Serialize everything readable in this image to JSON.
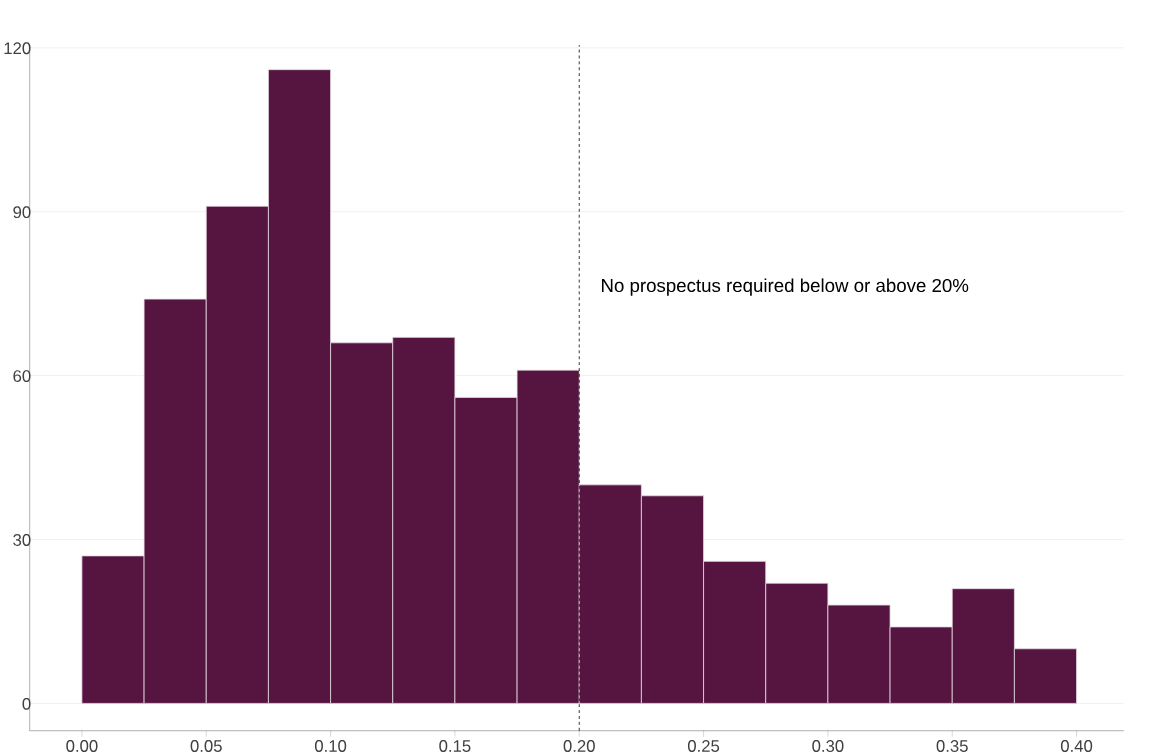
{
  "chart_data": {
    "type": "histogram",
    "bins": [
      0.0,
      0.025,
      0.05,
      0.075,
      0.1,
      0.125,
      0.15,
      0.175,
      0.2,
      0.225,
      0.25,
      0.275,
      0.3,
      0.325,
      0.35,
      0.375,
      0.4
    ],
    "values": [
      27,
      74,
      91,
      116,
      66,
      67,
      56,
      61,
      40,
      38,
      26,
      22,
      18,
      14,
      21,
      10
    ],
    "color": "#561540",
    "xlim": [
      -0.021,
      0.419
    ],
    "ylim": [
      -5,
      120.5
    ],
    "xticks": [
      {
        "value": 0,
        "label": "0.00"
      },
      {
        "value": 0.05,
        "label": "0.05"
      },
      {
        "value": 0.1,
        "label": "0.10"
      },
      {
        "value": 0.15,
        "label": "0.15"
      },
      {
        "value": 0.2,
        "label": "0.20"
      },
      {
        "value": 0.25,
        "label": "0.25"
      },
      {
        "value": 0.3,
        "label": "0.30"
      },
      {
        "value": 0.35,
        "label": "0.35"
      },
      {
        "value": 0.4,
        "label": "0.40"
      }
    ],
    "yticks": [
      0,
      30,
      60,
      90,
      120
    ],
    "grid": "y",
    "ref_lines": [
      {
        "axis": "x",
        "value": 0.2,
        "label": "No prospectus required below or above 20%",
        "line_style": "dashed",
        "color": "#000000"
      }
    ]
  }
}
